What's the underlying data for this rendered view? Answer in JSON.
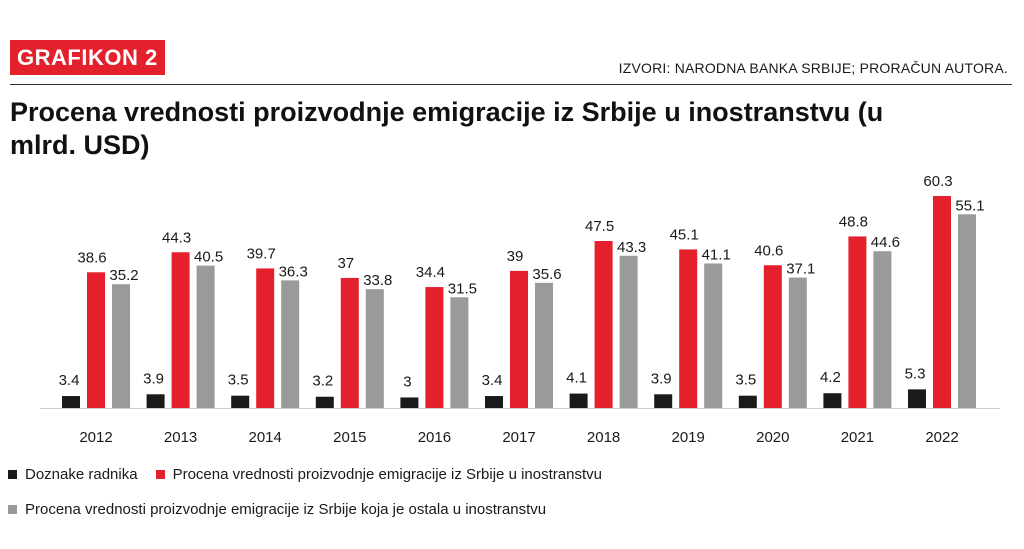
{
  "header": {
    "badge": "GRAFIKON 2",
    "source": "IZVORI: NARODNA BANKA SRBIJE; PRORAČUN AUTORA.",
    "title": "Procena vrednosti proizvodnje emigracije iz Srbije u inostranstvu (u mlrd. USD)"
  },
  "colors": {
    "accent": "#e4202c",
    "worker": "#1a1a1a",
    "production": "#e4202c",
    "remained": "#9a9a9a"
  },
  "chart_data": {
    "type": "bar",
    "title": "Procena vrednosti proizvodnje emigracije iz Srbije u inostranstvu (u mlrd. USD)",
    "xlabel": "",
    "ylabel": "",
    "ylim": [
      0,
      65
    ],
    "grid": false,
    "legend_position": "bottom",
    "categories": [
      "2012",
      "2013",
      "2014",
      "2015",
      "2016",
      "2017",
      "2018",
      "2019",
      "2020",
      "2021",
      "2022"
    ],
    "series": [
      {
        "name": "Doznake radnika",
        "color": "#1a1a1a",
        "values": [
          3.4,
          3.9,
          3.5,
          3.2,
          3,
          3.4,
          4.1,
          3.9,
          3.5,
          4.2,
          5.3
        ],
        "labels": [
          "3.4",
          "3.9",
          "3.5",
          "3.2",
          "3",
          "3.4",
          "4.1",
          "3.9",
          "3.5",
          "4.2",
          "5.3"
        ]
      },
      {
        "name": "Procena vrednosti proizvodnje emigracije iz Srbije u inostranstvu",
        "color": "#e4202c",
        "values": [
          38.6,
          44.3,
          39.7,
          37,
          34.4,
          39,
          47.5,
          45.1,
          40.6,
          48.8,
          60.3
        ],
        "labels": [
          "38.6",
          "44.3",
          "39.7",
          "37",
          "34.4",
          "39",
          "47.5",
          "45.1",
          "40.6",
          "48.8",
          "60.3"
        ]
      },
      {
        "name": "Procena vrednosti proizvodnje emigracije iz Srbije koja je ostala u inostranstvu",
        "color": "#9a9a9a",
        "values": [
          35.2,
          40.5,
          36.3,
          33.8,
          31.5,
          35.6,
          43.3,
          41.1,
          37.1,
          44.6,
          55.1
        ],
        "labels": [
          "35.2",
          "40.5",
          "36.3",
          "33.8",
          "31.5",
          "35.6",
          "43.3",
          "41.1",
          "37.1",
          "44.6",
          "55.1"
        ]
      }
    ]
  }
}
